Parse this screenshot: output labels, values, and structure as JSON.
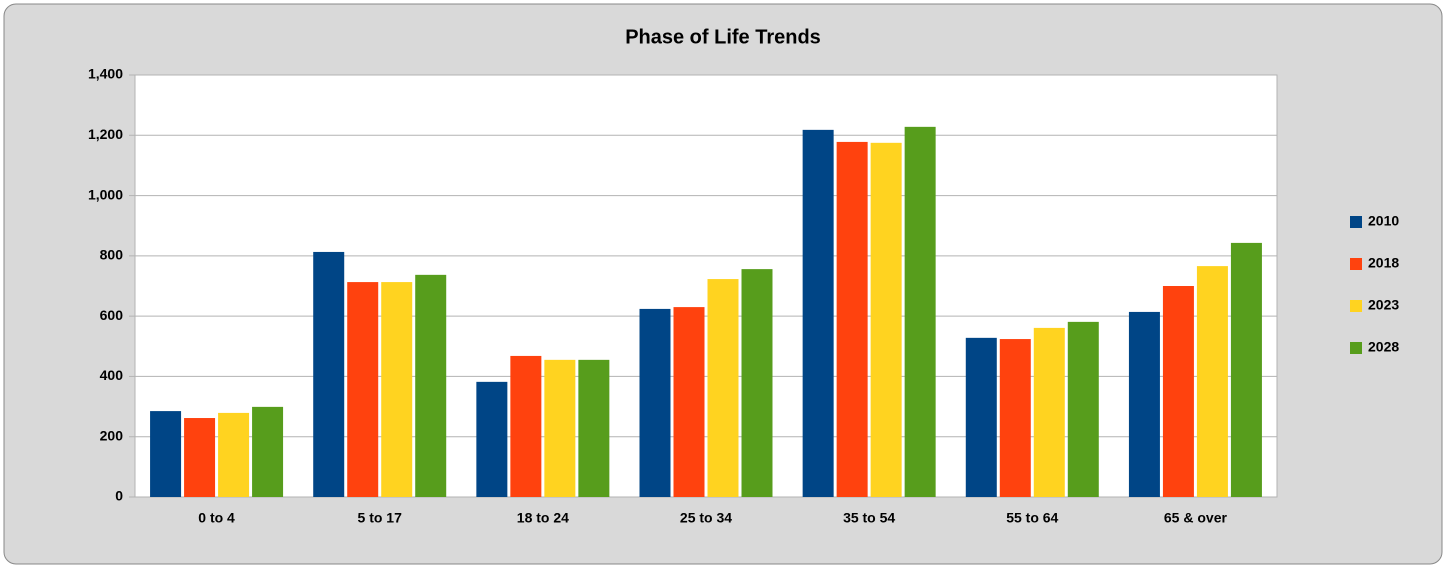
{
  "chart_data": {
    "type": "bar",
    "title": "Phase of Life Trends",
    "categories": [
      "0 to 4",
      "5 to 17",
      "18 to 24",
      "25 to 34",
      "35 to 54",
      "55 to 64",
      "65 & over"
    ],
    "series": [
      {
        "name": "2010",
        "color": "#004586",
        "values": [
          285,
          813,
          382,
          624,
          1218,
          528,
          614
        ]
      },
      {
        "name": "2018",
        "color": "#ff420e",
        "values": [
          262,
          713,
          468,
          630,
          1178,
          524,
          700
        ]
      },
      {
        "name": "2023",
        "color": "#ffd320",
        "values": [
          279,
          713,
          455,
          723,
          1175,
          561,
          766
        ]
      },
      {
        "name": "2028",
        "color": "#579d1c",
        "values": [
          299,
          737,
          455,
          756,
          1228,
          581,
          843
        ]
      }
    ],
    "ylim": [
      0,
      1400
    ],
    "yticks": [
      0,
      200,
      400,
      600,
      800,
      {
        "value": 1000,
        "label": "1,000"
      },
      {
        "value": 1200,
        "label": "1,200"
      },
      {
        "value": 1400,
        "label": "1,400"
      }
    ],
    "grid": true,
    "legend": "right"
  }
}
